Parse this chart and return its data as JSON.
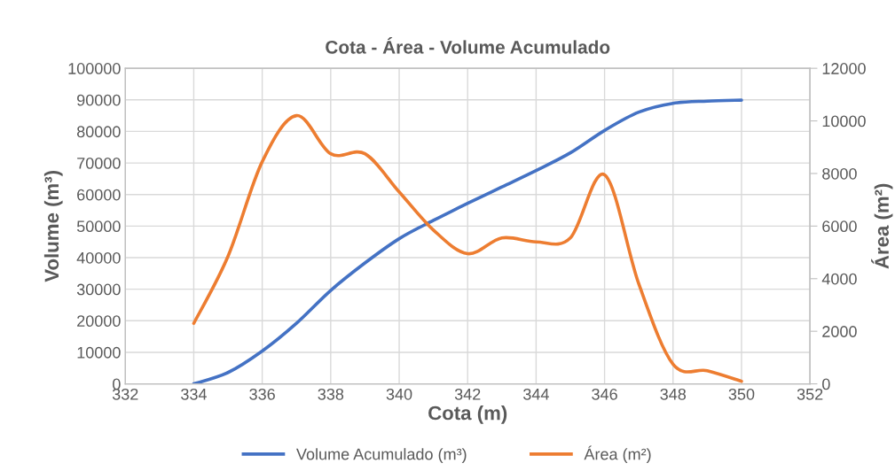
{
  "chart_data": {
    "type": "line",
    "title": "Cota - Área - Volume Acumulado",
    "xlabel": "Cota (m)",
    "ylabel": "Volume (m³)",
    "y2label": "Área (m²)",
    "x": [
      334,
      335,
      336,
      337,
      338,
      339,
      340,
      341,
      342,
      343,
      344,
      345,
      346,
      347,
      348,
      349,
      350
    ],
    "series": [
      {
        "name": "Volume Acumulado (m³)",
        "color": "#4472c4",
        "values": [
          0,
          3600,
          10400,
          19200,
          29600,
          38300,
          46000,
          51800,
          57200,
          62400,
          67600,
          73200,
          80300,
          86100,
          88900,
          89600,
          89900
        ]
      },
      {
        "name": "Área (m²)",
        "color": "#ed7d31",
        "axis": "y2",
        "values": [
          2300,
          4850,
          8450,
          10200,
          8750,
          8750,
          7300,
          5850,
          4950,
          5550,
          5400,
          5550,
          7950,
          3800,
          750,
          500,
          100
        ]
      }
    ],
    "xlim": [
      332,
      352
    ],
    "xticks": [
      332,
      334,
      336,
      338,
      340,
      342,
      344,
      346,
      348,
      350,
      352
    ],
    "ylim": [
      0,
      100000
    ],
    "yticks": [
      0,
      10000,
      20000,
      30000,
      40000,
      50000,
      60000,
      70000,
      80000,
      90000,
      100000
    ],
    "y2lim": [
      0,
      12000
    ],
    "y2ticks": [
      0,
      2000,
      4000,
      6000,
      8000,
      10000,
      12000
    ],
    "grid": true,
    "legend": "bottom",
    "marker": "none",
    "line_style": "solid"
  }
}
